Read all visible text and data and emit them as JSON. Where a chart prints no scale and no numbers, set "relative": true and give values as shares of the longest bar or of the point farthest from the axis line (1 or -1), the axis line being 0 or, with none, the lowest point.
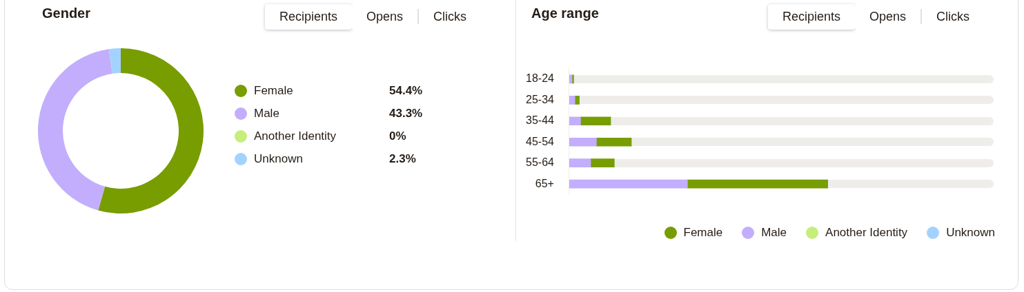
{
  "chart_data": [
    {
      "type": "donut",
      "title": "Gender",
      "categories": [
        "Female",
        "Male",
        "Another Identity",
        "Unknown"
      ],
      "values": [
        54.4,
        43.3,
        0,
        2.3
      ],
      "colors": [
        "#789d00",
        "#c2aefd",
        "#c5ee7b",
        "#a4d2ff"
      ],
      "value_labels": [
        "54.4%",
        "43.3%",
        "0%",
        "2.3%"
      ],
      "legend": "right",
      "annotations": [
        "Recipients",
        "Opens",
        "Clicks"
      ]
    },
    {
      "type": "bar",
      "title": "Age range",
      "orientation": "horizontal",
      "stacked": true,
      "relative": true,
      "legend": "bottom",
      "categories": [
        "18-24",
        "25-34",
        "35-44",
        "45-54",
        "55-64",
        "65+"
      ],
      "series": [
        {
          "name": "Male",
          "color": "#c2aefd",
          "values": [
            0.011,
            0.022,
            0.044,
            0.105,
            0.083,
            0.457
          ]
        },
        {
          "name": "Female",
          "color": "#789d00",
          "values": [
            0.006,
            0.017,
            0.116,
            0.135,
            0.091,
            0.543
          ]
        },
        {
          "name": "Another Identity",
          "color": "#c5ee7b",
          "values": [
            0,
            0,
            0,
            0,
            0,
            0
          ]
        },
        {
          "name": "Unknown",
          "color": "#a4d2ff",
          "values": [
            0,
            0,
            0,
            0,
            0,
            0
          ]
        }
      ],
      "annotations": [
        "Recipients",
        "Opens",
        "Clicks"
      ]
    }
  ]
}
